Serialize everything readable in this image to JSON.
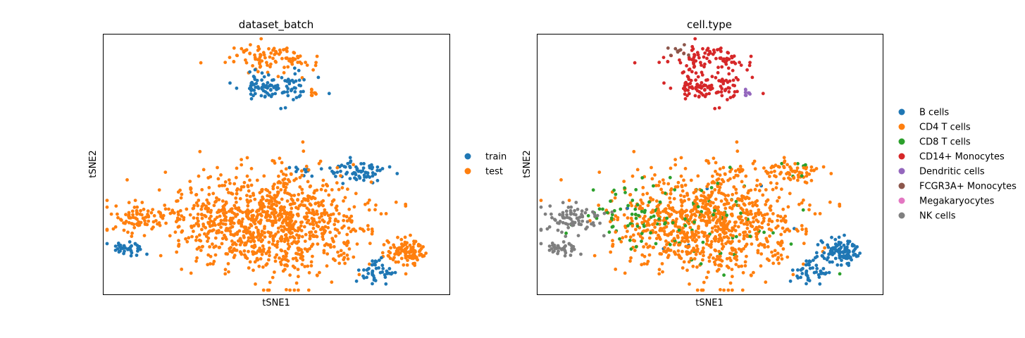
{
  "colors": {
    "axis": "#000000",
    "tab10": [
      "#1f77b4",
      "#ff7f0e",
      "#2ca02c",
      "#d62728",
      "#9467bd",
      "#8c564b",
      "#e377c2",
      "#7f7f7f"
    ]
  },
  "chart_data": [
    {
      "type": "scatter",
      "title": "dataset_batch",
      "xlabel": "tSNE1",
      "ylabel": "tSNE2",
      "grid": false,
      "ticks": false,
      "legend_position": "right",
      "series": [
        {
          "name": "train",
          "color": "#1f77b4"
        },
        {
          "name": "test",
          "color": "#ff7f0e"
        }
      ]
    },
    {
      "type": "scatter",
      "title": "cell.type",
      "xlabel": "tSNE1",
      "ylabel": "tSNE2",
      "grid": false,
      "ticks": false,
      "legend_position": "right",
      "series": [
        {
          "name": "B cells",
          "color": "#1f77b4"
        },
        {
          "name": "CD4 T cells",
          "color": "#ff7f0e"
        },
        {
          "name": "CD8 T cells",
          "color": "#2ca02c"
        },
        {
          "name": "CD14+ Monocytes",
          "color": "#d62728"
        },
        {
          "name": "Dendritic cells",
          "color": "#9467bd"
        },
        {
          "name": "FCGR3A+ Monocytes",
          "color": "#8c564b"
        },
        {
          "name": "Megakaryocytes",
          "color": "#e377c2"
        },
        {
          "name": "NK cells",
          "color": "#7f7f7f"
        }
      ]
    }
  ]
}
